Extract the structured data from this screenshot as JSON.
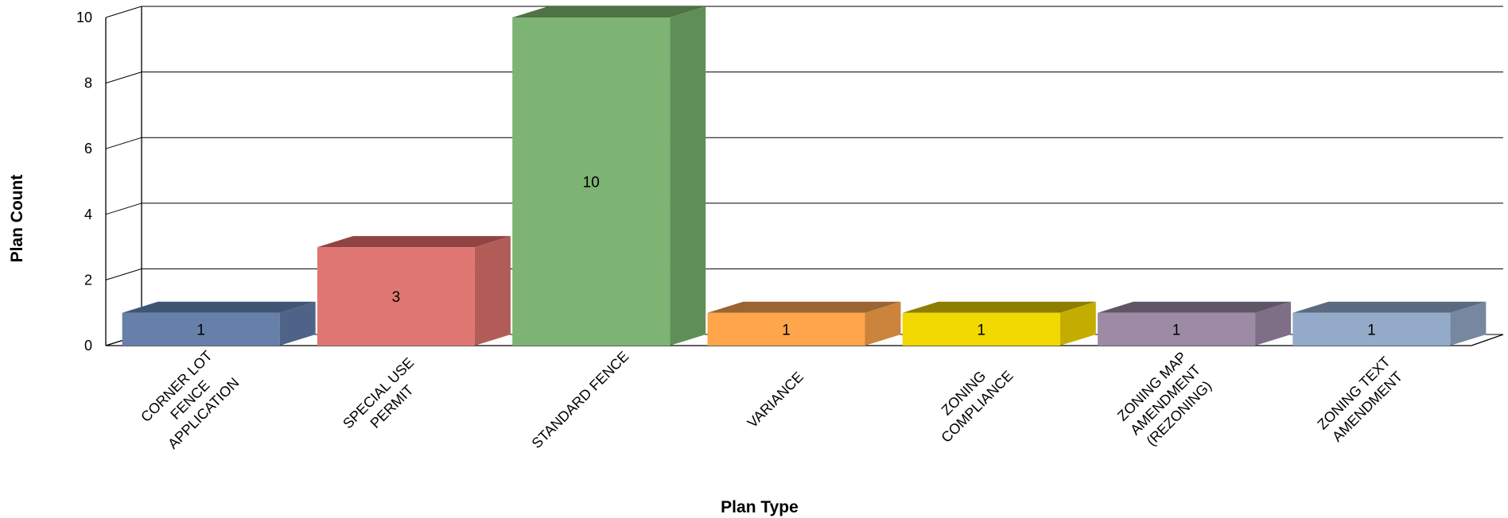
{
  "chart_data": {
    "type": "bar",
    "xlabel": "Plan Type",
    "ylabel": "Plan Count",
    "ylim": [
      0,
      10
    ],
    "yticks": [
      0,
      2,
      4,
      6,
      8,
      10
    ],
    "grid": true,
    "three_d": true,
    "categories": [
      [
        "CORNER LOT",
        "FENCE",
        "APPLICATION"
      ],
      [
        "SPECIAL USE",
        "PERMIT"
      ],
      [
        "STANDARD FENCE"
      ],
      [
        "VARIANCE"
      ],
      [
        "ZONING",
        "COMPLIANCE"
      ],
      [
        "ZONING MAP",
        "AMENDMENT",
        "(REZONING)"
      ],
      [
        "ZONING TEXT",
        "AMENDMENT"
      ]
    ],
    "values": [
      1,
      3,
      10,
      1,
      1,
      1,
      1
    ],
    "data_labels": [
      "1",
      "3",
      "10",
      "1",
      "1",
      "1",
      "1"
    ],
    "colors": [
      {
        "front": "#6680a9",
        "top": "#3f5574",
        "side": "#4e6387"
      },
      {
        "front": "#e07672",
        "top": "#8f4442",
        "side": "#b25c58"
      },
      {
        "front": "#7db373",
        "top": "#4f7345",
        "side": "#5f8f56"
      },
      {
        "front": "#ffa54c",
        "top": "#9a6530",
        "side": "#cc843c"
      },
      {
        "front": "#f0d800",
        "top": "#8d7e00",
        "side": "#c4ad00"
      },
      {
        "front": "#9d8ba6",
        "top": "#5f5566",
        "side": "#7e6f86"
      },
      {
        "front": "#93aac8",
        "top": "#5b6a80",
        "side": "#7588a0"
      }
    ]
  }
}
